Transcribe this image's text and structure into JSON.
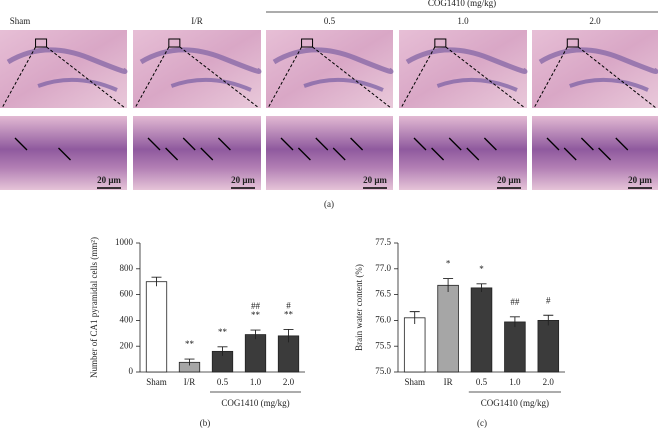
{
  "figure": {
    "panel_a": {
      "columns": [
        "Sham",
        "I/R",
        "0.5",
        "1.0",
        "2.0"
      ],
      "group_label": "COG1410 (mg/kg)",
      "scale_bar": "20 μm",
      "panel": "(a)"
    }
  },
  "chart_data": [
    {
      "type": "bar",
      "panel": "(b)",
      "ylabel": "Number of CA1 pyramidal cells (mm²)",
      "categories": [
        "Sham",
        "I/R",
        "0.5",
        "1.0",
        "2.0"
      ],
      "group_label": "COG1410 (mg/kg)",
      "values": [
        700,
        75,
        160,
        290,
        280
      ],
      "errors": [
        35,
        25,
        35,
        35,
        50
      ],
      "colors": [
        "#ffffff",
        "#a6a6a6",
        "#3b3b3b",
        "#3b3b3b",
        "#3b3b3b"
      ],
      "annotations": [
        null,
        [
          "**"
        ],
        [
          "**"
        ],
        [
          "##",
          "**"
        ],
        [
          "#",
          "**"
        ]
      ],
      "ylim": [
        0,
        1000
      ],
      "yticks": [
        0,
        200,
        400,
        600,
        800,
        1000
      ]
    },
    {
      "type": "bar",
      "panel": "(c)",
      "ylabel": "Brain water content (%)",
      "categories": [
        "Sham",
        "IR",
        "0.5",
        "1.0",
        "2.0"
      ],
      "group_label": "COG1410 (mg/kg)",
      "values": [
        76.05,
        76.68,
        76.63,
        75.97,
        76.0
      ],
      "errors": [
        0.12,
        0.13,
        0.08,
        0.1,
        0.1
      ],
      "colors": [
        "#ffffff",
        "#a6a6a6",
        "#3b3b3b",
        "#3b3b3b",
        "#3b3b3b"
      ],
      "annotations": [
        null,
        [
          "*"
        ],
        [
          "*"
        ],
        [
          "##"
        ],
        [
          "#"
        ]
      ],
      "ylim": [
        75,
        77.5
      ],
      "yticks": [
        {
          "value": 75,
          "label": "75.0"
        },
        {
          "value": 75.5,
          "label": "75.5"
        },
        {
          "value": 76,
          "label": "76.0"
        },
        {
          "value": 76.5,
          "label": "76.5"
        },
        {
          "value": 77,
          "label": "77.0"
        },
        {
          "value": 77.5,
          "label": "77.5"
        }
      ]
    }
  ]
}
